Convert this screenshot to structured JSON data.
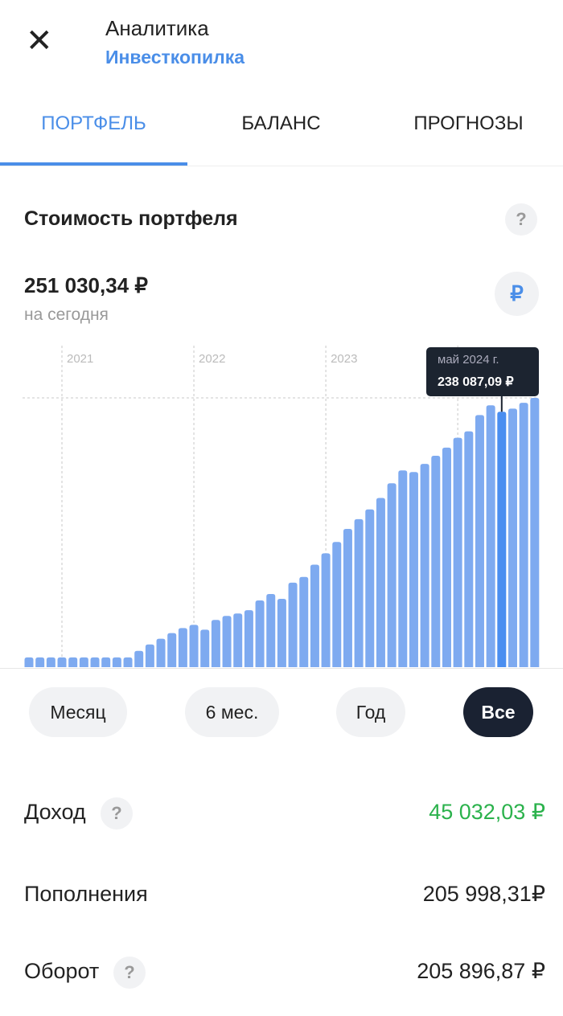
{
  "header": {
    "title": "Аналитика",
    "subtitle": "Инвесткопилка"
  },
  "tabs": [
    {
      "label": "ПОРТФЕЛЬ",
      "active": true
    },
    {
      "label": "БАЛАНС",
      "active": false
    },
    {
      "label": "ПРОГНОЗЫ",
      "active": false
    }
  ],
  "portfolio": {
    "title": "Стоимость портфеля",
    "help": "?",
    "value": "251 030,34 ₽",
    "caption": "на сегодня",
    "currency_button": "₽"
  },
  "chart_data": {
    "type": "bar",
    "color": "#7eaaf0",
    "highlight_color": "#4a8ef0",
    "categories": [
      null,
      null,
      null,
      "2021",
      null,
      null,
      null,
      null,
      null,
      null,
      null,
      null,
      null,
      null,
      null,
      "2022",
      null,
      null,
      null,
      null,
      null,
      null,
      null,
      null,
      null,
      null,
      null,
      "2023",
      null,
      null,
      null,
      null,
      null,
      null,
      null,
      null,
      null,
      null,
      null,
      null,
      null,
      null,
      null,
      "май 2024 г.",
      null,
      null,
      null
    ],
    "values": [
      9100,
      9100,
      9100,
      9100,
      9100,
      9100,
      9100,
      9100,
      9100,
      9100,
      15200,
      21200,
      26500,
      31800,
      36400,
      39400,
      34900,
      44000,
      47800,
      50000,
      53100,
      62200,
      68200,
      63700,
      78800,
      84100,
      95500,
      106100,
      116700,
      128900,
      138000,
      147100,
      157700,
      171400,
      183400,
      181900,
      189500,
      197100,
      204700,
      213800,
      219800,
      235000,
      244100,
      238087.09,
      241000,
      246400,
      251030.34
    ],
    "value_labels": [
      null,
      null,
      null,
      null,
      null,
      null,
      null,
      null,
      null,
      null,
      null,
      null,
      null,
      null,
      null,
      null,
      null,
      null,
      null,
      null,
      null,
      null,
      null,
      null,
      null,
      null,
      null,
      null,
      null,
      null,
      null,
      null,
      null,
      null,
      null,
      null,
      null,
      null,
      null,
      null,
      null,
      null,
      null,
      "238 087,09 ₽",
      null,
      null,
      null
    ],
    "ylim": [
      0,
      251030.34
    ]
  },
  "periods": [
    {
      "label": "Месяц",
      "selected": false
    },
    {
      "label": "6 мес.",
      "selected": false
    },
    {
      "label": "Год",
      "selected": false
    },
    {
      "label": "Все",
      "selected": true
    }
  ],
  "rows": [
    {
      "label": "Доход",
      "help": "?",
      "value": "45 032,03 ₽",
      "color": "#2bb24c"
    },
    {
      "label": "Пополнения",
      "value": "205 998,31₽",
      "color": "#222222"
    },
    {
      "label": "Оборот",
      "help": "?",
      "value": "205 896,87 ₽",
      "color": "#222222"
    }
  ]
}
